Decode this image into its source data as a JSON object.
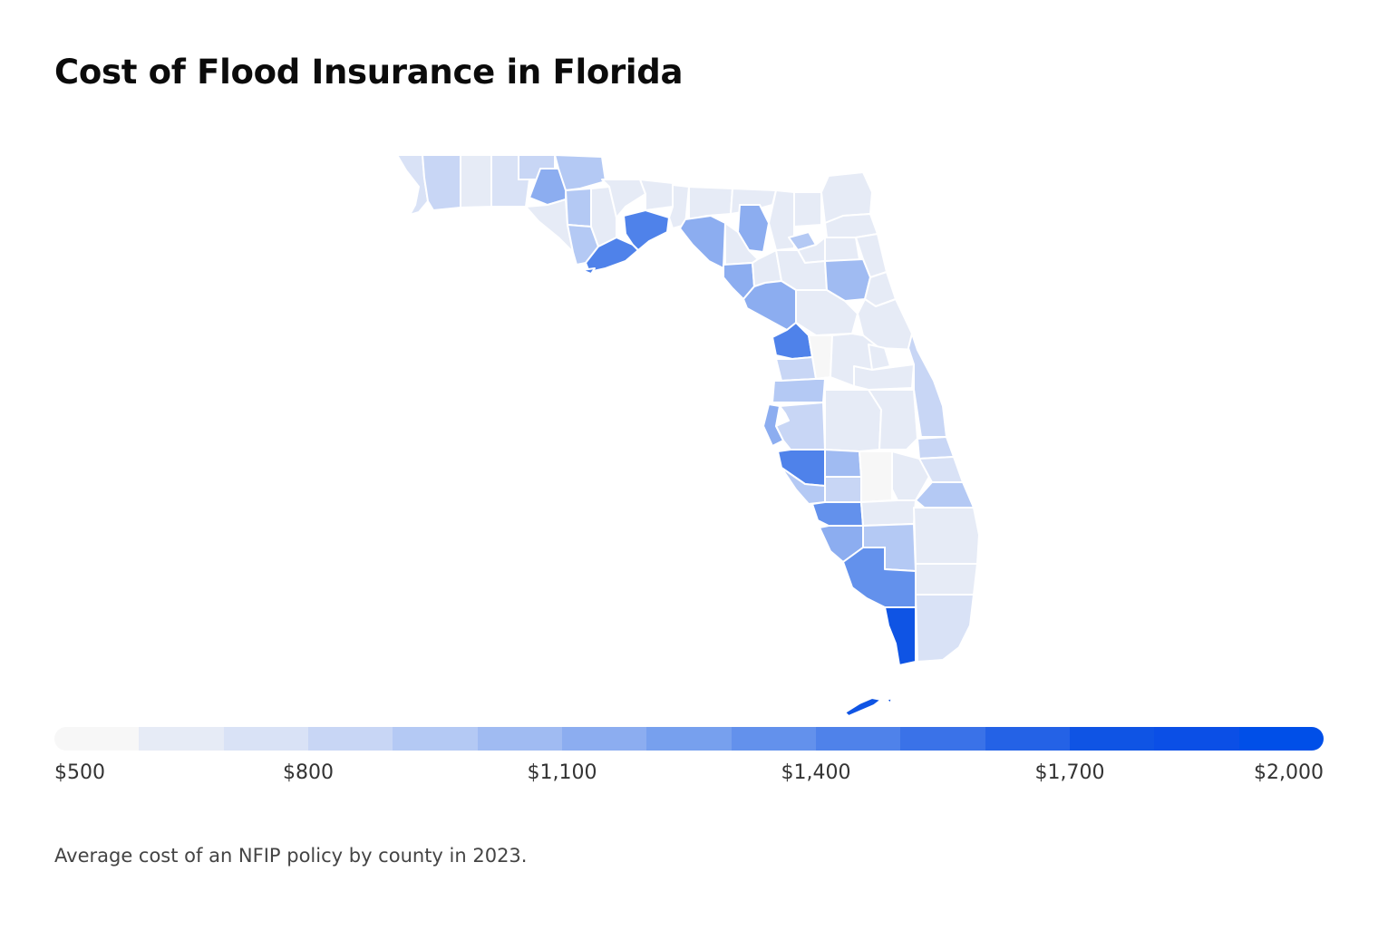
{
  "title": "Cost of Flood Insurance in Florida",
  "caption": "Average cost of an NFIP policy by county in 2023.",
  "colors": {
    "scale": [
      "#f7f7f7",
      "#e6ebf6",
      "#d9e2f6",
      "#c8d6f5",
      "#b4c9f4",
      "#a0bbf2",
      "#8cadf0",
      "#77a0ee",
      "#6391ec",
      "#4f82ea",
      "#3a72e8",
      "#2462e6",
      "#0f54e4",
      "#0b4fe6",
      "#004fe8"
    ]
  },
  "legend": {
    "labels": [
      "$500",
      "$800",
      "$1,100",
      "$1,400",
      "$1,700",
      "$2,000"
    ]
  }
}
